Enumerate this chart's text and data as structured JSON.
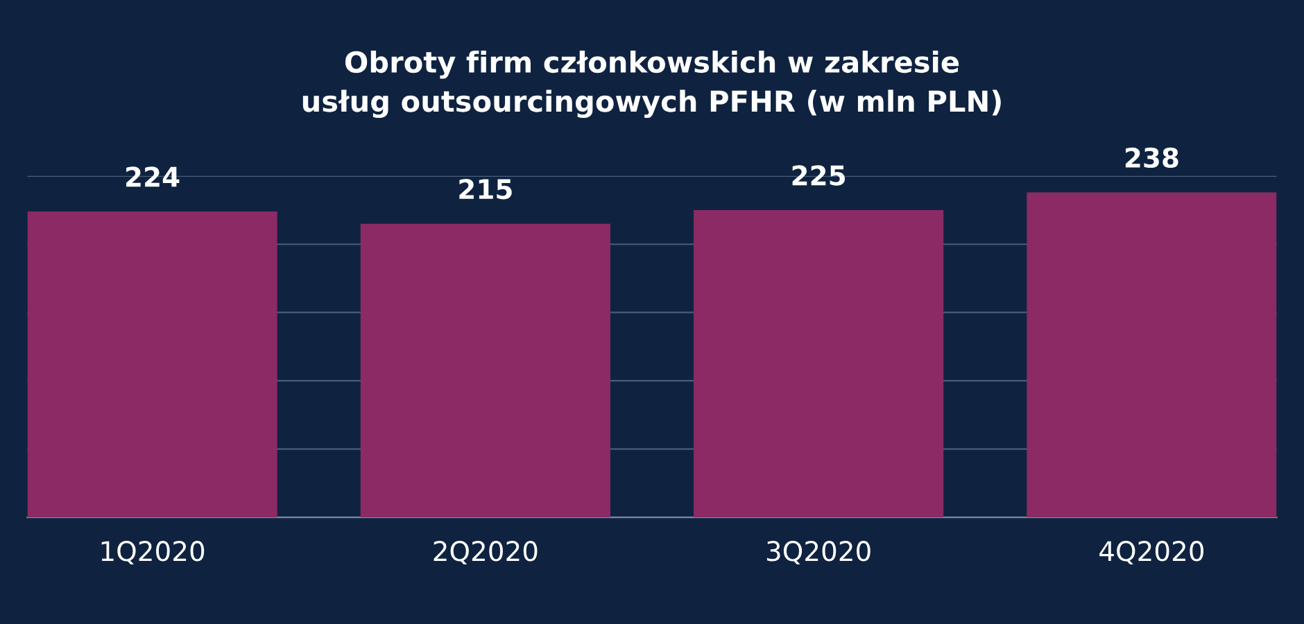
{
  "chart_data": {
    "type": "bar",
    "title": "Obroty firm członkowskich w zakresie\nusług outsourcingowych PFHR (w mln PLN)",
    "categories": [
      "1Q2020",
      "2Q2020",
      "3Q2020",
      "4Q2020"
    ],
    "values": [
      224,
      215,
      225,
      238
    ],
    "color": "#8b2a64",
    "ylim": [
      0,
      250
    ],
    "yticks": [
      {
        "value": 0,
        "label": null
      },
      {
        "value": 50,
        "label": null
      },
      {
        "value": 100,
        "label": null
      },
      {
        "value": 150,
        "label": null
      },
      {
        "value": 200,
        "label": null
      },
      {
        "value": 250,
        "label": null
      }
    ],
    "grid": "y",
    "data_labels": true,
    "tick_labels": "x"
  }
}
